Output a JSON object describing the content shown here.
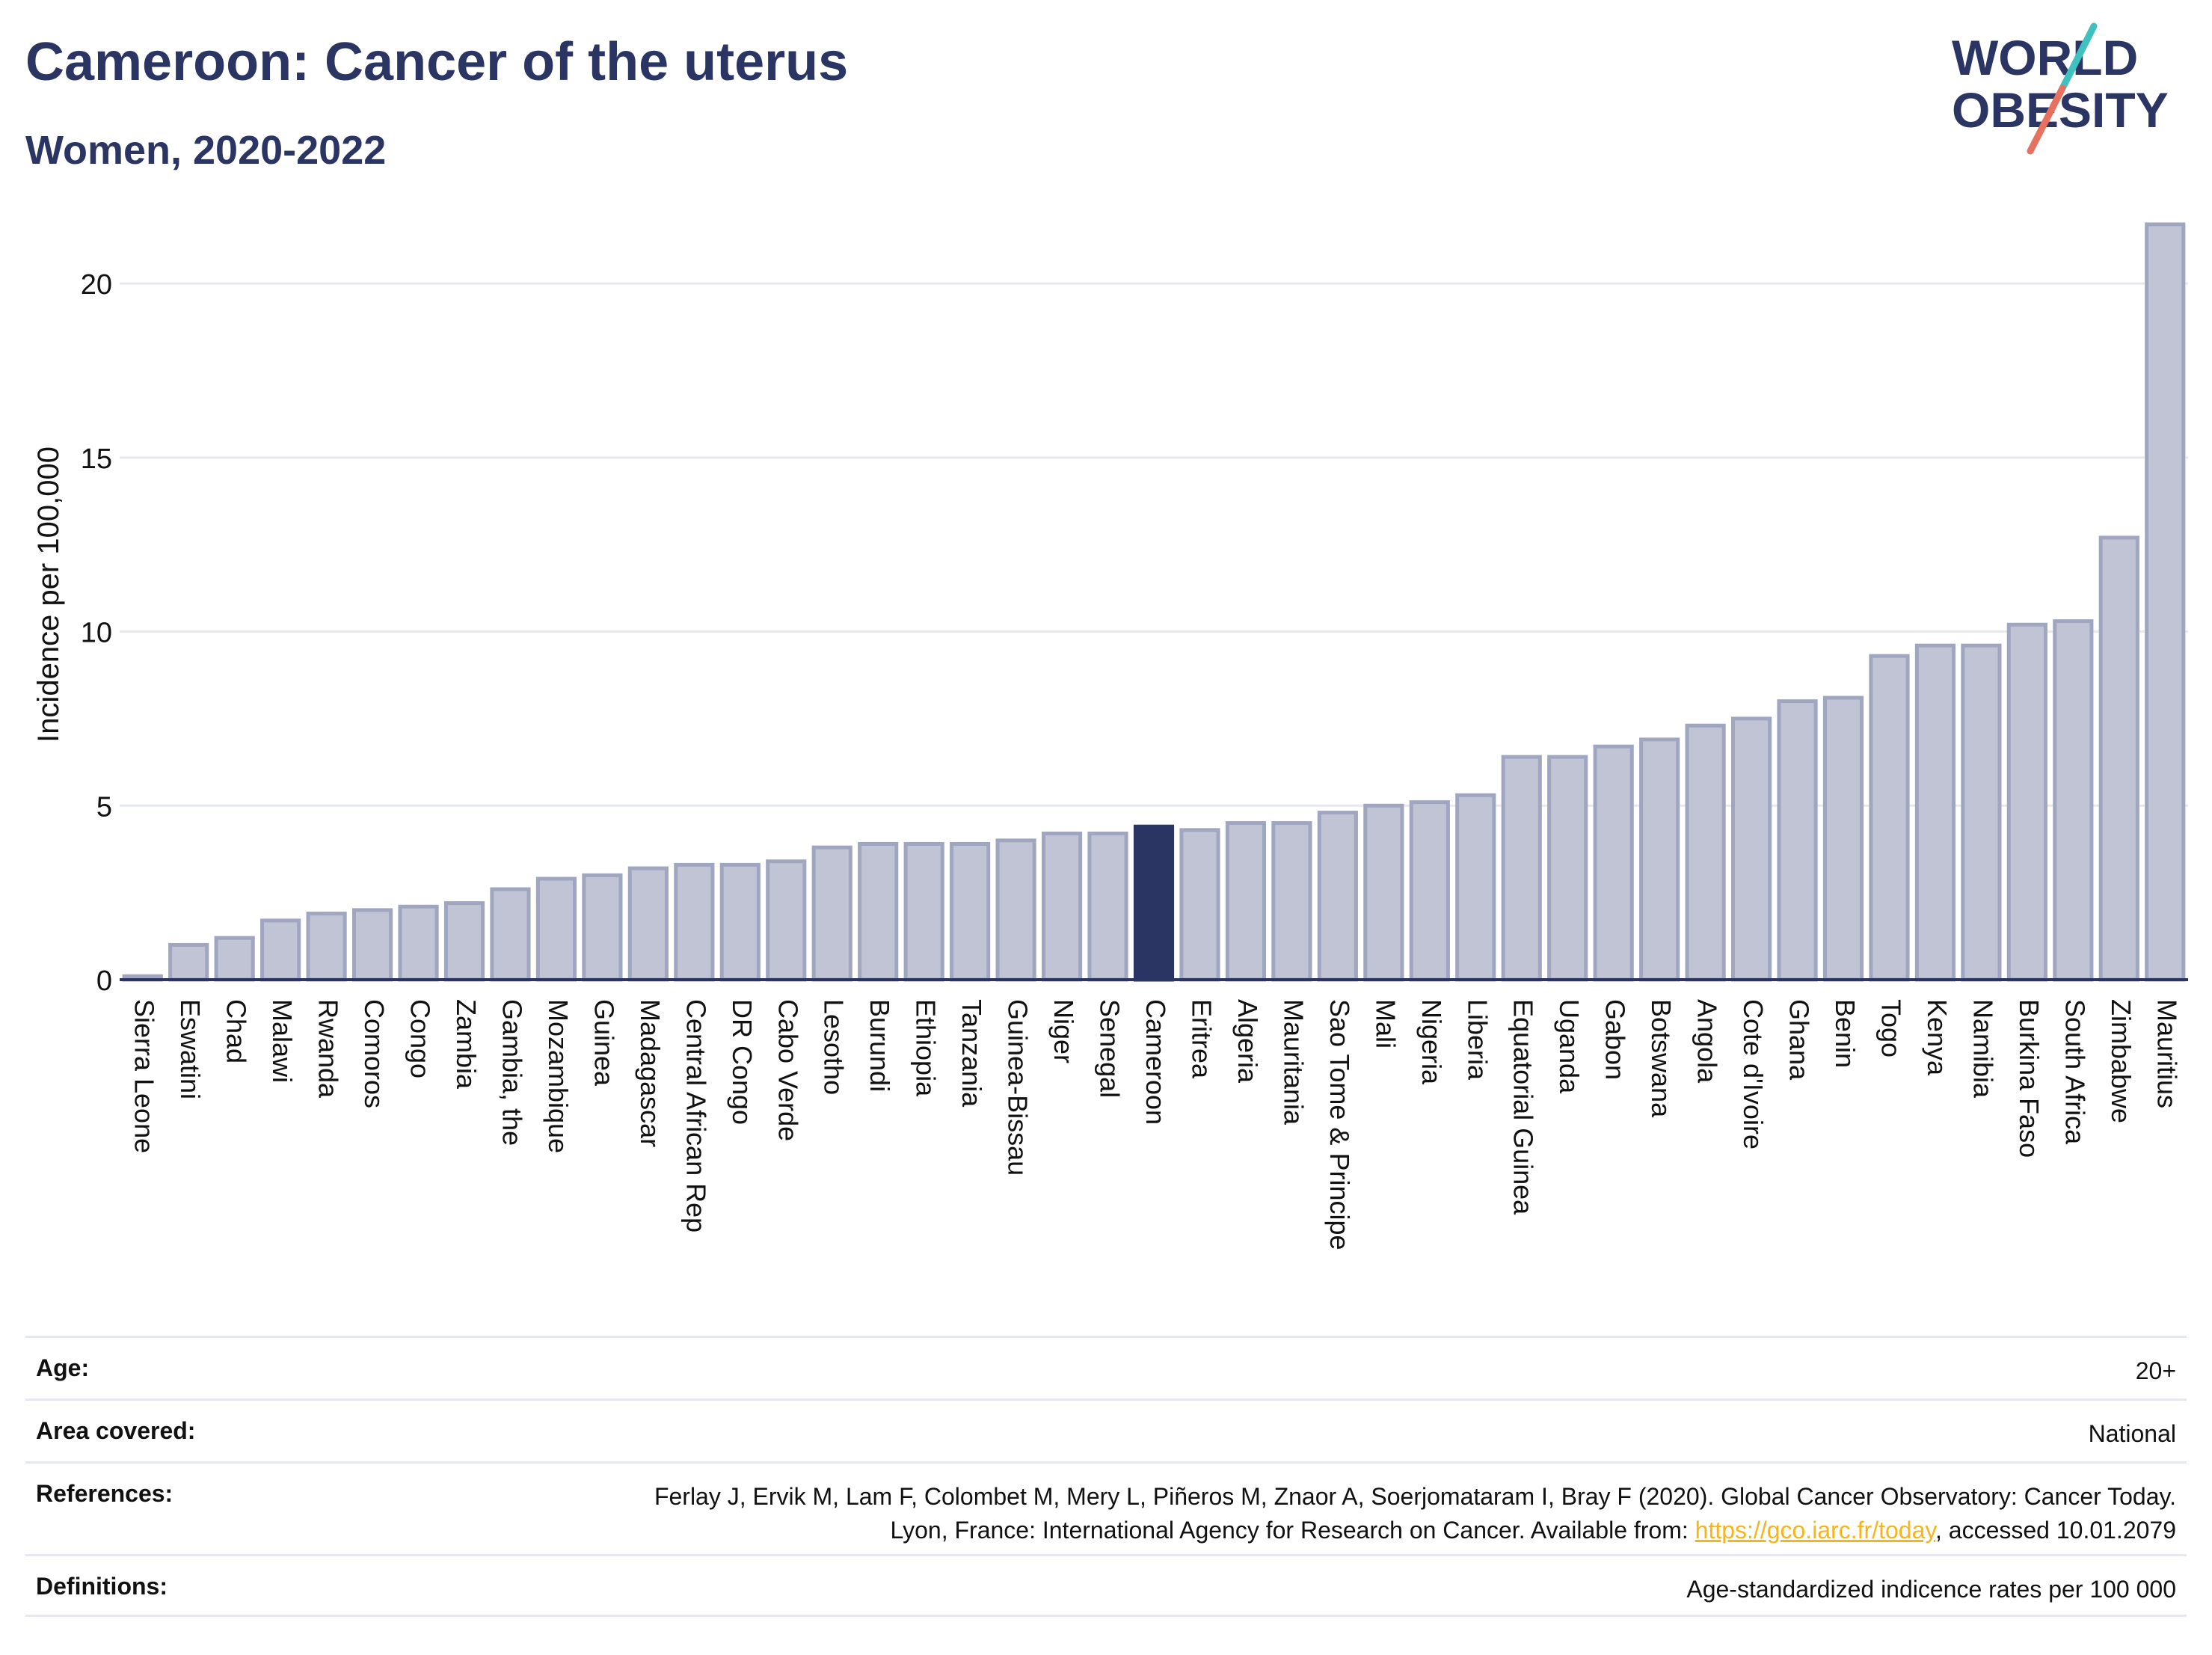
{
  "header": {
    "title": "Cameroon: Cancer of the uterus",
    "subtitle": "Women, 2020-2022"
  },
  "logo": {
    "line1": "WORLD",
    "line2": "OBESITY",
    "colors": {
      "text": "#2b3563",
      "slash_top": "#3fc1c0",
      "slash_bottom": "#e8705e"
    }
  },
  "chart_data": {
    "type": "bar",
    "ylabel": "Incidence per 100,000",
    "xlabel": "",
    "ylim": [
      0,
      22
    ],
    "yticks": [
      0,
      5,
      10,
      15,
      20
    ],
    "grid": true,
    "highlight": "Cameroon",
    "colors": {
      "bar": "#c0c4d4",
      "bar_edge": "#a0a6bf",
      "highlight": "#2b3563"
    },
    "categories": [
      "Sierra Leone",
      "Eswatini",
      "Chad",
      "Malawi",
      "Rwanda",
      "Comoros",
      "Congo",
      "Zambia",
      "Gambia, the",
      "Mozambique",
      "Guinea",
      "Madagascar",
      "Central African Rep",
      "DR Congo",
      "Cabo Verde",
      "Lesotho",
      "Burundi",
      "Ethiopia",
      "Tanzania",
      "Guinea-Bissau",
      "Niger",
      "Senegal",
      "Cameroon",
      "Eritrea",
      "Algeria",
      "Mauritania",
      "Sao Tome & Principe",
      "Mali",
      "Nigeria",
      "Liberia",
      "Equatorial Guinea",
      "Uganda",
      "Gabon",
      "Botswana",
      "Angola",
      "Cote d'Ivoire",
      "Ghana",
      "Benin",
      "Togo",
      "Kenya",
      "Namibia",
      "Burkina Faso",
      "South Africa",
      "Zimbabwe",
      "Mauritius"
    ],
    "values": [
      0.1,
      1.0,
      1.2,
      1.7,
      1.9,
      2.0,
      2.1,
      2.2,
      2.6,
      2.9,
      3.0,
      3.2,
      3.3,
      3.3,
      3.4,
      3.8,
      3.9,
      3.9,
      3.9,
      4.0,
      4.2,
      4.2,
      4.4,
      4.3,
      4.5,
      4.5,
      4.8,
      5.0,
      5.1,
      5.3,
      6.4,
      6.4,
      6.7,
      6.9,
      7.3,
      7.5,
      8.0,
      8.1,
      9.3,
      9.6,
      9.6,
      10.2,
      10.3,
      12.7,
      21.7
    ]
  },
  "info": {
    "age": {
      "label": "Age:",
      "value": "20+"
    },
    "area": {
      "label": "Area covered:",
      "value": "National"
    },
    "references": {
      "label": "References:",
      "text_before": "Ferlay J, Ervik M, Lam F, Colombet M, Mery L, Piñeros M, Znaor A, Soerjomataram I, Bray F (2020). Global Cancer Observatory: Cancer Today. Lyon, France: International Agency for Research on Cancer. Available from: ",
      "link_text": "https://gco.iarc.fr/today",
      "text_after": ", accessed 10.01.2079"
    },
    "definitions": {
      "label": "Definitions:",
      "value": "Age-standardized indicence rates per 100 000"
    }
  }
}
